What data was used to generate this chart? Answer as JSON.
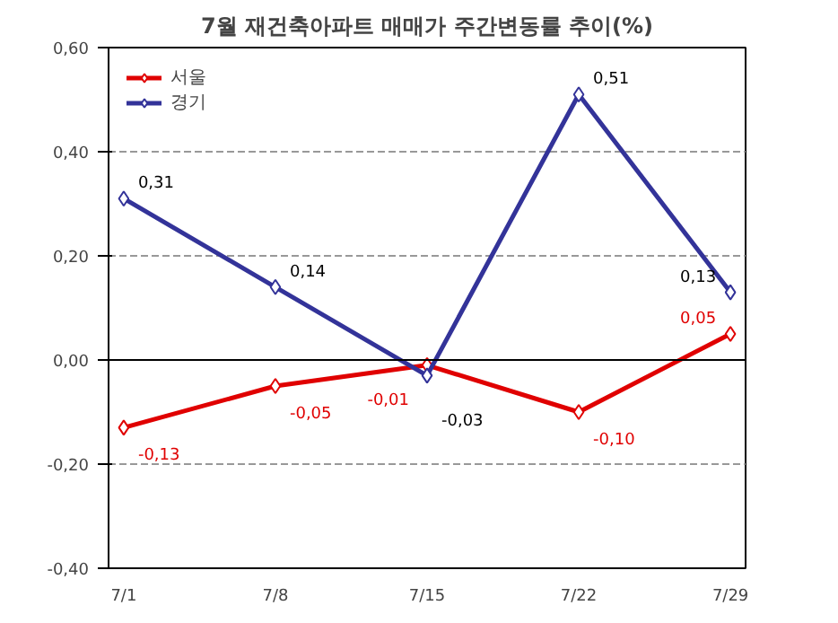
{
  "chart_data": {
    "type": "line",
    "title": "7월 재건축아파트 매매가 주간변동률 추이(%)",
    "categories": [
      "7/1",
      "7/8",
      "7/15",
      "7/22",
      "7/29"
    ],
    "series": [
      {
        "name": "서울",
        "color": "#e00000",
        "values": [
          -0.13,
          -0.05,
          -0.01,
          -0.1,
          0.05
        ],
        "value_labels": [
          "-0,13",
          "-0,05",
          "-0,01",
          "-0,10",
          "0,05"
        ]
      },
      {
        "name": "경기",
        "color": "#333399",
        "values": [
          0.31,
          0.14,
          -0.03,
          0.51,
          0.13
        ],
        "value_labels": [
          "0,31",
          "0,14",
          "-0,03",
          "0,51",
          "0,13"
        ]
      }
    ],
    "ylim": [
      -0.4,
      0.6
    ],
    "yticks": [
      {
        "value": -0.4,
        "label": "-0,40"
      },
      {
        "value": -0.2,
        "label": "-0,20"
      },
      {
        "value": 0,
        "label": "0,00"
      },
      {
        "value": 0.2,
        "label": "0,20"
      },
      {
        "value": 0.4,
        "label": "0,40"
      },
      {
        "value": 0.6,
        "label": "0,60"
      }
    ],
    "grid": "y",
    "legend": "top left",
    "marker": "diamond",
    "line_style": "solid"
  }
}
